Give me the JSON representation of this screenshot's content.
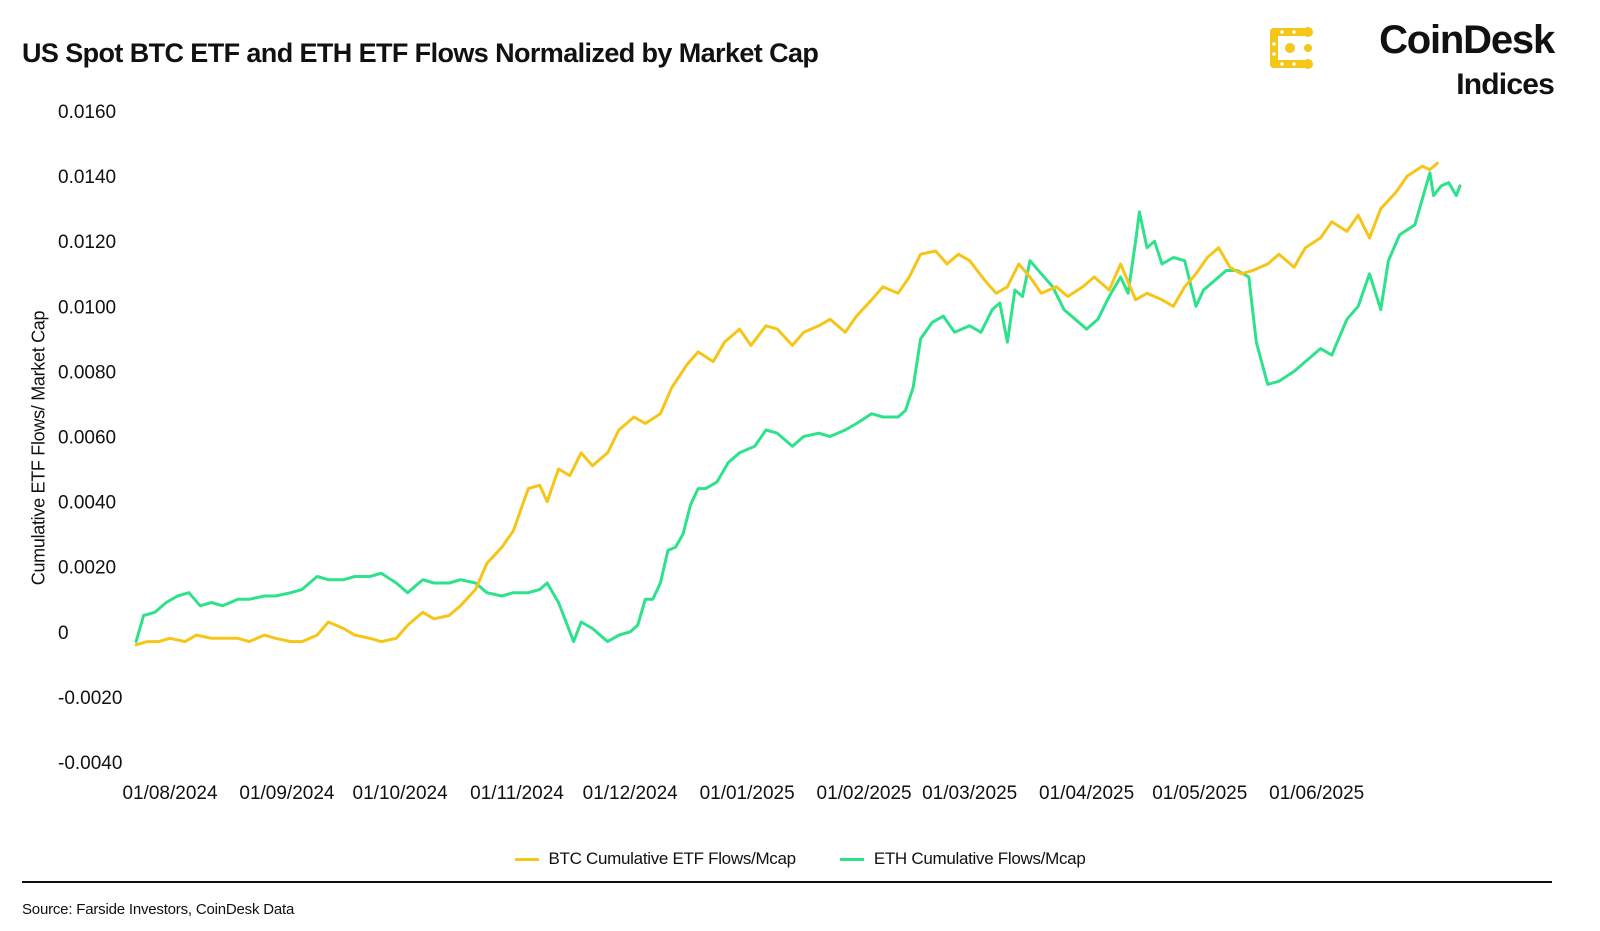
{
  "title": "US Spot BTC ETF and ETH ETF Flows Normalized by Market Cap",
  "brand": {
    "name": "CoinDesk",
    "sub": "Indices",
    "color": "#F5C518"
  },
  "source": "Source: Farside Investors, CoinDesk Data",
  "chart_data": {
    "type": "line",
    "title": "US Spot BTC ETF and ETH ETF Flows Normalized by Market Cap",
    "xlabel": "",
    "ylabel": "Cumulative ETF Flows/ Market Cap",
    "ylim": [
      -0.004,
      0.016
    ],
    "xlim": [
      "2024-08-01",
      "2025-06-26"
    ],
    "grid": false,
    "legend": "bottom-center",
    "y_ticks": [
      {
        "value": 0.016,
        "label": "0.0160"
      },
      {
        "value": 0.014,
        "label": "0.0140"
      },
      {
        "value": 0.012,
        "label": "0.0120"
      },
      {
        "value": 0.01,
        "label": "0.0100"
      },
      {
        "value": 0.008,
        "label": "0.0080"
      },
      {
        "value": 0.006,
        "label": "0.0060"
      },
      {
        "value": 0.004,
        "label": "0.0040"
      },
      {
        "value": 0.002,
        "label": "0.0020"
      },
      {
        "value": 0,
        "label": "0"
      },
      {
        "value": -0.002,
        "label": "-0.0020"
      },
      {
        "value": -0.004,
        "label": "-0.0040"
      }
    ],
    "x_ticks": [
      {
        "date": "2024-08-01",
        "label": "01/08/2024"
      },
      {
        "date": "2024-09-01",
        "label": "01/09/2024"
      },
      {
        "date": "2024-10-01",
        "label": "01/10/2024"
      },
      {
        "date": "2024-11-01",
        "label": "01/11/2024"
      },
      {
        "date": "2024-12-01",
        "label": "01/12/2024"
      },
      {
        "date": "2025-01-01",
        "label": "01/01/2025"
      },
      {
        "date": "2025-02-01",
        "label": "01/02/2025"
      },
      {
        "date": "2025-03-01",
        "label": "01/03/2025"
      },
      {
        "date": "2025-04-01",
        "label": "01/04/2025"
      },
      {
        "date": "2025-05-01",
        "label": "01/05/2025"
      },
      {
        "date": "2025-06-01",
        "label": "01/06/2025"
      }
    ],
    "series": [
      {
        "name": "BTC Cumulative ETF Flows/Mcap",
        "color": "#F5C518",
        "points": [
          [
            "2024-07-23",
            -0.0004
          ],
          [
            "2024-07-26",
            -0.0003
          ],
          [
            "2024-07-29",
            -0.0003
          ],
          [
            "2024-08-01",
            -0.0002
          ],
          [
            "2024-08-05",
            -0.0003
          ],
          [
            "2024-08-08",
            -0.0001
          ],
          [
            "2024-08-12",
            -0.0002
          ],
          [
            "2024-08-15",
            -0.0002
          ],
          [
            "2024-08-19",
            -0.0002
          ],
          [
            "2024-08-22",
            -0.0003
          ],
          [
            "2024-08-26",
            -0.0001
          ],
          [
            "2024-08-29",
            -0.0002
          ],
          [
            "2024-09-02",
            -0.0003
          ],
          [
            "2024-09-05",
            -0.0003
          ],
          [
            "2024-09-09",
            -0.0001
          ],
          [
            "2024-09-12",
            0.0003
          ],
          [
            "2024-09-16",
            0.0001
          ],
          [
            "2024-09-19",
            -0.0001
          ],
          [
            "2024-09-23",
            -0.0002
          ],
          [
            "2024-09-26",
            -0.0003
          ],
          [
            "2024-09-30",
            -0.0002
          ],
          [
            "2024-10-03",
            0.0002
          ],
          [
            "2024-10-07",
            0.0006
          ],
          [
            "2024-10-10",
            0.0004
          ],
          [
            "2024-10-14",
            0.0005
          ],
          [
            "2024-10-17",
            0.0008
          ],
          [
            "2024-10-21",
            0.0013
          ],
          [
            "2024-10-24",
            0.0021
          ],
          [
            "2024-10-28",
            0.0026
          ],
          [
            "2024-10-31",
            0.0031
          ],
          [
            "2024-11-04",
            0.0044
          ],
          [
            "2024-11-07",
            0.0045
          ],
          [
            "2024-11-09",
            0.004
          ],
          [
            "2024-11-12",
            0.005
          ],
          [
            "2024-11-15",
            0.0048
          ],
          [
            "2024-11-18",
            0.0055
          ],
          [
            "2024-11-21",
            0.0051
          ],
          [
            "2024-11-25",
            0.0055
          ],
          [
            "2024-11-28",
            0.0062
          ],
          [
            "2024-12-02",
            0.0066
          ],
          [
            "2024-12-05",
            0.0064
          ],
          [
            "2024-12-09",
            0.0067
          ],
          [
            "2024-12-12",
            0.0075
          ],
          [
            "2024-12-16",
            0.0082
          ],
          [
            "2024-12-19",
            0.0086
          ],
          [
            "2024-12-23",
            0.0083
          ],
          [
            "2024-12-26",
            0.0089
          ],
          [
            "2024-12-30",
            0.0093
          ],
          [
            "2025-01-02",
            0.0088
          ],
          [
            "2025-01-06",
            0.0094
          ],
          [
            "2025-01-09",
            0.0093
          ],
          [
            "2025-01-13",
            0.0088
          ],
          [
            "2025-01-16",
            0.0092
          ],
          [
            "2025-01-20",
            0.0094
          ],
          [
            "2025-01-23",
            0.0096
          ],
          [
            "2025-01-27",
            0.0092
          ],
          [
            "2025-01-30",
            0.0097
          ],
          [
            "2025-02-03",
            0.0102
          ],
          [
            "2025-02-06",
            0.0106
          ],
          [
            "2025-02-10",
            0.0104
          ],
          [
            "2025-02-13",
            0.0109
          ],
          [
            "2025-02-16",
            0.0116
          ],
          [
            "2025-02-20",
            0.0117
          ],
          [
            "2025-02-23",
            0.0113
          ],
          [
            "2025-02-26",
            0.0116
          ],
          [
            "2025-03-01",
            0.0114
          ],
          [
            "2025-03-03",
            0.0111
          ],
          [
            "2025-03-05",
            0.0108
          ],
          [
            "2025-03-08",
            0.0104
          ],
          [
            "2025-03-11",
            0.0106
          ],
          [
            "2025-03-14",
            0.0113
          ],
          [
            "2025-03-17",
            0.0109
          ],
          [
            "2025-03-20",
            0.0104
          ],
          [
            "2025-03-24",
            0.0106
          ],
          [
            "2025-03-27",
            0.0103
          ],
          [
            "2025-03-31",
            0.0106
          ],
          [
            "2025-04-03",
            0.0109
          ],
          [
            "2025-04-07",
            0.0105
          ],
          [
            "2025-04-10",
            0.0113
          ],
          [
            "2025-04-14",
            0.0102
          ],
          [
            "2025-04-17",
            0.0104
          ],
          [
            "2025-04-21",
            0.0102
          ],
          [
            "2025-04-24",
            0.01
          ],
          [
            "2025-04-27",
            0.0106
          ],
          [
            "2025-04-30",
            0.011
          ],
          [
            "2025-05-03",
            0.0115
          ],
          [
            "2025-05-06",
            0.0118
          ],
          [
            "2025-05-09",
            0.0112
          ],
          [
            "2025-05-12",
            0.011
          ],
          [
            "2025-05-15",
            0.0111
          ],
          [
            "2025-05-19",
            0.0113
          ],
          [
            "2025-05-22",
            0.0116
          ],
          [
            "2025-05-26",
            0.0112
          ],
          [
            "2025-05-29",
            0.0118
          ],
          [
            "2025-06-02",
            0.0121
          ],
          [
            "2025-06-05",
            0.0126
          ],
          [
            "2025-06-09",
            0.0123
          ],
          [
            "2025-06-12",
            0.0128
          ],
          [
            "2025-06-15",
            0.0121
          ],
          [
            "2025-06-18",
            0.013
          ],
          [
            "2025-06-22",
            0.0135
          ],
          [
            "2025-06-25",
            0.014
          ],
          [
            "2025-06-29",
            0.0143
          ],
          [
            "2025-07-01",
            0.0142
          ],
          [
            "2025-07-03",
            0.0144
          ]
        ]
      },
      {
        "name": "ETH Cumulative Flows/Mcap",
        "color": "#2EE28C",
        "points": [
          [
            "2024-07-23",
            -0.0003
          ],
          [
            "2024-07-25",
            0.0005
          ],
          [
            "2024-07-28",
            0.0006
          ],
          [
            "2024-07-31",
            0.0009
          ],
          [
            "2024-08-03",
            0.0011
          ],
          [
            "2024-08-06",
            0.0012
          ],
          [
            "2024-08-09",
            0.0008
          ],
          [
            "2024-08-12",
            0.0009
          ],
          [
            "2024-08-15",
            0.0008
          ],
          [
            "2024-08-19",
            0.001
          ],
          [
            "2024-08-22",
            0.001
          ],
          [
            "2024-08-26",
            0.0011
          ],
          [
            "2024-08-29",
            0.0011
          ],
          [
            "2024-09-02",
            0.0012
          ],
          [
            "2024-09-05",
            0.0013
          ],
          [
            "2024-09-09",
            0.0017
          ],
          [
            "2024-09-12",
            0.0016
          ],
          [
            "2024-09-16",
            0.0016
          ],
          [
            "2024-09-19",
            0.0017
          ],
          [
            "2024-09-23",
            0.0017
          ],
          [
            "2024-09-26",
            0.0018
          ],
          [
            "2024-09-30",
            0.0015
          ],
          [
            "2024-10-03",
            0.0012
          ],
          [
            "2024-10-07",
            0.0016
          ],
          [
            "2024-10-10",
            0.0015
          ],
          [
            "2024-10-14",
            0.0015
          ],
          [
            "2024-10-17",
            0.0016
          ],
          [
            "2024-10-21",
            0.0015
          ],
          [
            "2024-10-24",
            0.0012
          ],
          [
            "2024-10-28",
            0.0011
          ],
          [
            "2024-10-31",
            0.0012
          ],
          [
            "2024-11-04",
            0.0012
          ],
          [
            "2024-11-07",
            0.0013
          ],
          [
            "2024-11-09",
            0.0015
          ],
          [
            "2024-11-12",
            0.0009
          ],
          [
            "2024-11-14",
            0.0003
          ],
          [
            "2024-11-16",
            -0.0003
          ],
          [
            "2024-11-18",
            0.0003
          ],
          [
            "2024-11-21",
            0.0001
          ],
          [
            "2024-11-25",
            -0.0003
          ],
          [
            "2024-11-28",
            -0.0001
          ],
          [
            "2024-12-01",
            0.0
          ],
          [
            "2024-12-03",
            0.0002
          ],
          [
            "2024-12-05",
            0.001
          ],
          [
            "2024-12-07",
            0.001
          ],
          [
            "2024-12-09",
            0.0015
          ],
          [
            "2024-12-11",
            0.0025
          ],
          [
            "2024-12-13",
            0.0026
          ],
          [
            "2024-12-15",
            0.003
          ],
          [
            "2024-12-17",
            0.0039
          ],
          [
            "2024-12-19",
            0.0044
          ],
          [
            "2024-12-21",
            0.0044
          ],
          [
            "2024-12-24",
            0.0046
          ],
          [
            "2024-12-27",
            0.0052
          ],
          [
            "2024-12-30",
            0.0055
          ],
          [
            "2025-01-03",
            0.0057
          ],
          [
            "2025-01-06",
            0.0062
          ],
          [
            "2025-01-09",
            0.0061
          ],
          [
            "2025-01-13",
            0.0057
          ],
          [
            "2025-01-16",
            0.006
          ],
          [
            "2025-01-20",
            0.0061
          ],
          [
            "2025-01-23",
            0.006
          ],
          [
            "2025-01-27",
            0.0062
          ],
          [
            "2025-01-30",
            0.0064
          ],
          [
            "2025-02-03",
            0.0067
          ],
          [
            "2025-02-06",
            0.0066
          ],
          [
            "2025-02-10",
            0.0066
          ],
          [
            "2025-02-12",
            0.0068
          ],
          [
            "2025-02-14",
            0.0075
          ],
          [
            "2025-02-16",
            0.009
          ],
          [
            "2025-02-19",
            0.0095
          ],
          [
            "2025-02-22",
            0.0097
          ],
          [
            "2025-02-25",
            0.0092
          ],
          [
            "2025-03-01",
            0.0094
          ],
          [
            "2025-03-04",
            0.0092
          ],
          [
            "2025-03-07",
            0.0099
          ],
          [
            "2025-03-09",
            0.0101
          ],
          [
            "2025-03-11",
            0.0089
          ],
          [
            "2025-03-13",
            0.0105
          ],
          [
            "2025-03-15",
            0.0103
          ],
          [
            "2025-03-17",
            0.0114
          ],
          [
            "2025-03-20",
            0.011
          ],
          [
            "2025-03-23",
            0.0106
          ],
          [
            "2025-03-26",
            0.0099
          ],
          [
            "2025-03-29",
            0.0096
          ],
          [
            "2025-04-01",
            0.0093
          ],
          [
            "2025-04-04",
            0.0096
          ],
          [
            "2025-04-07",
            0.0103
          ],
          [
            "2025-04-10",
            0.0109
          ],
          [
            "2025-04-12",
            0.0104
          ],
          [
            "2025-04-14",
            0.012
          ],
          [
            "2025-04-15",
            0.0129
          ],
          [
            "2025-04-17",
            0.0118
          ],
          [
            "2025-04-19",
            0.012
          ],
          [
            "2025-04-21",
            0.0113
          ],
          [
            "2025-04-24",
            0.0115
          ],
          [
            "2025-04-27",
            0.0114
          ],
          [
            "2025-04-30",
            0.01
          ],
          [
            "2025-05-02",
            0.0105
          ],
          [
            "2025-05-05",
            0.0108
          ],
          [
            "2025-05-08",
            0.0111
          ],
          [
            "2025-05-11",
            0.0111
          ],
          [
            "2025-05-14",
            0.0109
          ],
          [
            "2025-05-16",
            0.0089
          ],
          [
            "2025-05-19",
            0.0076
          ],
          [
            "2025-05-22",
            0.0077
          ],
          [
            "2025-05-26",
            0.008
          ],
          [
            "2025-05-29",
            0.0083
          ],
          [
            "2025-06-02",
            0.0087
          ],
          [
            "2025-06-05",
            0.0085
          ],
          [
            "2025-06-09",
            0.0096
          ],
          [
            "2025-06-12",
            0.01
          ],
          [
            "2025-06-15",
            0.011
          ],
          [
            "2025-06-18",
            0.0099
          ],
          [
            "2025-06-20",
            0.0114
          ],
          [
            "2025-06-23",
            0.0122
          ],
          [
            "2025-06-27",
            0.0125
          ],
          [
            "2025-07-01",
            0.0141
          ],
          [
            "2025-07-02",
            0.0134
          ],
          [
            "2025-07-04",
            0.0137
          ],
          [
            "2025-07-06",
            0.0138
          ],
          [
            "2025-07-08",
            0.0134
          ],
          [
            "2025-07-09",
            0.0137
          ]
        ]
      }
    ]
  }
}
